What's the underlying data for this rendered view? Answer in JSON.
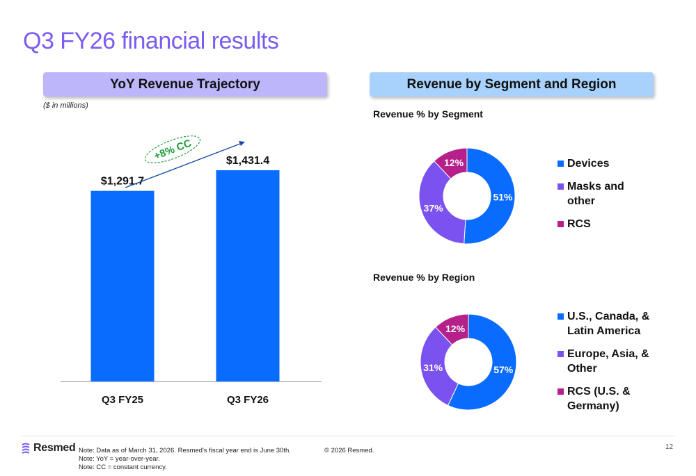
{
  "slide": {
    "title": "Q3 FY26 financial results",
    "left_panel_header": "YoY Revenue Trajectory",
    "right_panel_header": "Revenue by Segment and Region",
    "units_note": "($ in millions)",
    "growth_label": "+8% CC"
  },
  "colors": {
    "title": "#7b5cf0",
    "bar": "#0a6cff",
    "devices": "#0a6cff",
    "masks": "#7b52f0",
    "rcs": "#b5208a",
    "growth_text": "#1e9e3a",
    "arrow": "#1a4aa8"
  },
  "chart_data": [
    {
      "type": "bar",
      "categories": [
        "Q3 FY25",
        "Q3 FY26"
      ],
      "values": [
        1291.7,
        1431.4
      ],
      "value_labels": [
        "$1,291.7",
        "$1,431.4"
      ],
      "ylim": [
        0,
        1431.4
      ]
    },
    {
      "type": "pie",
      "title": "Revenue % by Segment",
      "labels": [
        "Devices",
        "Masks and other",
        "RCS"
      ],
      "values": [
        51,
        37,
        12
      ],
      "value_labels": [
        "51%",
        "37%",
        "12%"
      ],
      "colors": [
        "#0a6cff",
        "#7b52f0",
        "#b5208a"
      ]
    },
    {
      "type": "pie",
      "title": "Revenue % by Region",
      "labels": [
        "U.S., Canada, & Latin America",
        "Europe, Asia, & Other",
        "RCS (U.S. & Germany)"
      ],
      "values": [
        57,
        31,
        12
      ],
      "value_labels": [
        "57%",
        "31%",
        "12%"
      ],
      "colors": [
        "#0a6cff",
        "#7b52f0",
        "#b5208a"
      ]
    }
  ],
  "footer": {
    "logo_text": "Resmed",
    "notes": [
      "Note: Data as of March 31, 2026. Resmed's fiscal year end is June 30th.",
      "Note: YoY = year-over-year.",
      "Note: CC = constant currency."
    ],
    "copyright": "© 2026 Resmed.",
    "page_number": "12"
  }
}
